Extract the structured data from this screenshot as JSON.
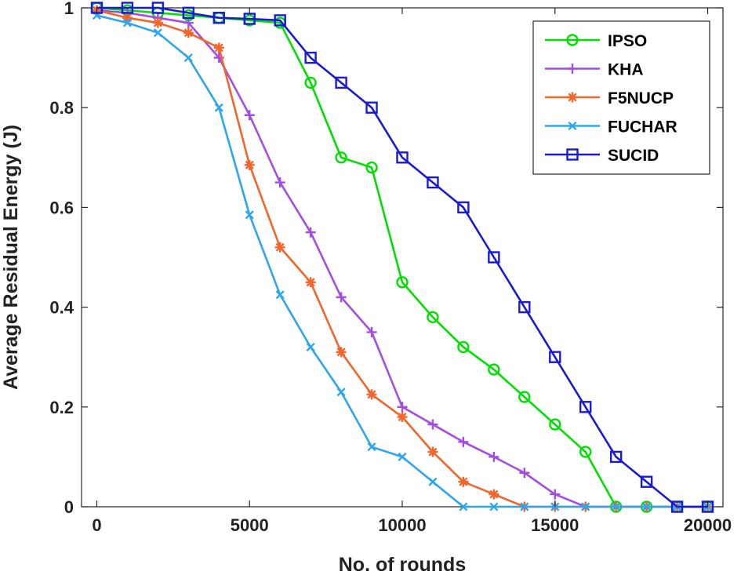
{
  "chart_data": {
    "type": "line",
    "title": "",
    "xlabel": "No. of rounds",
    "ylabel": "Average Residual Energy (J)",
    "xlim": [
      -500,
      20500
    ],
    "ylim": [
      0,
      1
    ],
    "xticks": [
      0,
      5000,
      10000,
      15000,
      20000
    ],
    "yticks": [
      0,
      0.2,
      0.4,
      0.6,
      0.8,
      1
    ],
    "xtick_labels": [
      "0",
      "5000",
      "10000",
      "15000",
      "20000"
    ],
    "ytick_labels": [
      "0",
      "0.2",
      "0.4",
      "0.6",
      "0.8",
      "1"
    ],
    "grid": false,
    "legend_position": "top-right",
    "x": [
      0,
      1000,
      2000,
      3000,
      4000,
      5000,
      6000,
      7000,
      8000,
      9000,
      10000,
      11000,
      12000,
      13000,
      14000,
      15000,
      16000,
      17000,
      18000,
      19000,
      20000
    ],
    "series": [
      {
        "name": "IPSO",
        "color": "#00e000",
        "marker": "circle",
        "values": [
          1.0,
          0.995,
          0.99,
          0.985,
          0.98,
          0.975,
          0.97,
          0.85,
          0.7,
          0.68,
          0.45,
          0.38,
          0.32,
          0.275,
          0.22,
          0.165,
          0.11,
          0.0,
          0.0,
          0.0,
          0.0
        ]
      },
      {
        "name": "KHA",
        "color": "#a64ce6",
        "marker": "plus",
        "values": [
          0.995,
          0.99,
          0.98,
          0.97,
          0.9,
          0.785,
          0.65,
          0.55,
          0.42,
          0.35,
          0.2,
          0.165,
          0.13,
          0.1,
          0.068,
          0.025,
          0.0,
          0.0,
          0.0,
          0.0,
          0.0
        ]
      },
      {
        "name": "F5NUCP",
        "color": "#f2652c",
        "marker": "asterisk",
        "values": [
          0.995,
          0.98,
          0.97,
          0.95,
          0.92,
          0.685,
          0.52,
          0.45,
          0.31,
          0.225,
          0.18,
          0.11,
          0.05,
          0.025,
          0.0,
          0.0,
          0.0,
          0.0,
          0.0,
          0.0,
          0.0
        ]
      },
      {
        "name": "FUCHAR",
        "color": "#2ea6ee",
        "marker": "x",
        "values": [
          0.985,
          0.97,
          0.95,
          0.9,
          0.8,
          0.585,
          0.425,
          0.32,
          0.23,
          0.12,
          0.1,
          0.05,
          0.0,
          0.0,
          0.0,
          0.0,
          0.0,
          0.0,
          0.0,
          0.0,
          0.0
        ]
      },
      {
        "name": "SUCID",
        "color": "#1a1ad6",
        "marker": "square",
        "values": [
          1.0,
          1.0,
          1.0,
          0.99,
          0.98,
          0.978,
          0.975,
          0.9,
          0.85,
          0.8,
          0.7,
          0.65,
          0.6,
          0.5,
          0.4,
          0.3,
          0.2,
          0.1,
          0.05,
          0.0,
          0.0
        ]
      }
    ]
  }
}
